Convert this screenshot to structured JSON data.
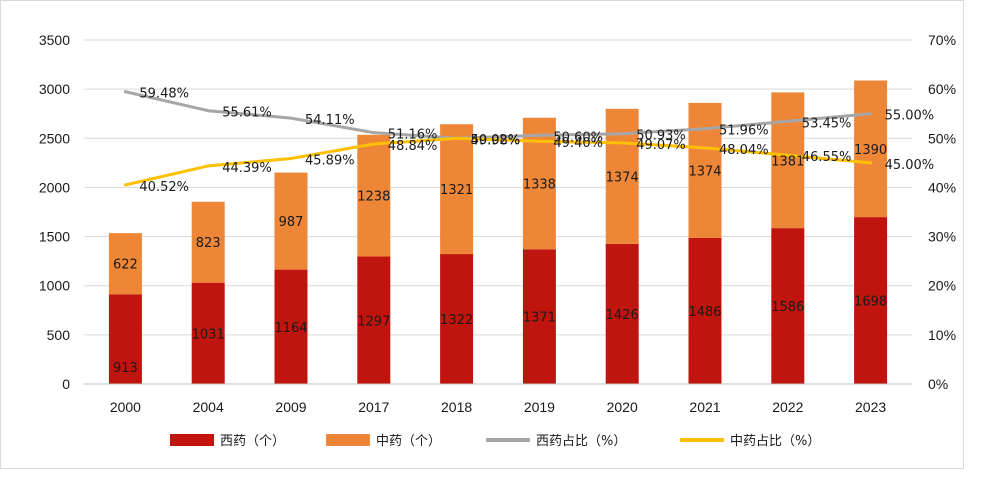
{
  "chart_data": {
    "type": "bar",
    "stacked": true,
    "categories": [
      "2000",
      "2004",
      "2009",
      "2017",
      "2018",
      "2019",
      "2020",
      "2021",
      "2022",
      "2023"
    ],
    "series": [
      {
        "name": "西药（个）",
        "axis": "left",
        "kind": "bar",
        "color": "#C0140E",
        "values": [
          913,
          1031,
          1164,
          1297,
          1322,
          1371,
          1426,
          1486,
          1586,
          1698
        ],
        "labels": [
          "913",
          "1031",
          "1164",
          "1297",
          "1322",
          "1371",
          "1426",
          "1486",
          "1586",
          "1698"
        ]
      },
      {
        "name": "中药（个）",
        "axis": "left",
        "kind": "bar",
        "color": "#EE8638",
        "values": [
          622,
          823,
          987,
          1238,
          1321,
          1338,
          1374,
          1374,
          1381,
          1390
        ],
        "labels": [
          "622",
          "823",
          "987",
          "1238",
          "1321",
          "1338",
          "1374",
          "1374",
          "1381",
          "1390"
        ]
      },
      {
        "name": "西药占比（%）",
        "axis": "right",
        "kind": "line",
        "color": "#A6A6A6",
        "values": [
          59.48,
          55.61,
          54.11,
          51.16,
          50.02,
          50.6,
          50.93,
          51.96,
          53.45,
          55.0
        ],
        "labels": [
          "59.48%",
          "55.61%",
          "54.11%",
          "51.16%",
          "50.02%",
          "50.60%",
          "50.93%",
          "51.96%",
          "53.45%",
          "55.00%"
        ]
      },
      {
        "name": "中药占比（%）",
        "axis": "right",
        "kind": "line",
        "color": "#FFC000",
        "values": [
          40.52,
          44.39,
          45.89,
          48.84,
          49.98,
          49.4,
          49.07,
          48.04,
          46.55,
          45.0
        ],
        "labels": [
          "40.52%",
          "44.39%",
          "45.89%",
          "48.84%",
          "49.98%",
          "49.40%",
          "49.07%",
          "48.04%",
          "46.55%",
          "45.00%"
        ]
      }
    ],
    "y_left": {
      "min": 0,
      "max": 3500,
      "step": 500,
      "ticks": [
        "0",
        "500",
        "1000",
        "1500",
        "2000",
        "2500",
        "3000",
        "3500"
      ]
    },
    "y_right": {
      "min": 0,
      "max": 70,
      "step": 10,
      "ticks": [
        "0%",
        "10%",
        "20%",
        "30%",
        "40%",
        "50%",
        "60%",
        "70%"
      ]
    },
    "legend": {
      "position": "bottom",
      "items": [
        "西药（个）",
        "中药（个）",
        "西药占比（%）",
        "中药占比（%）"
      ]
    },
    "grid": true
  },
  "colors": {
    "western_bar": "#C0140E",
    "chinese_bar": "#EE8638",
    "western_line": "#A6A6A6",
    "chinese_line": "#FFC000",
    "gridline": "#D9D9D9",
    "frame": "#D9D9D9"
  }
}
